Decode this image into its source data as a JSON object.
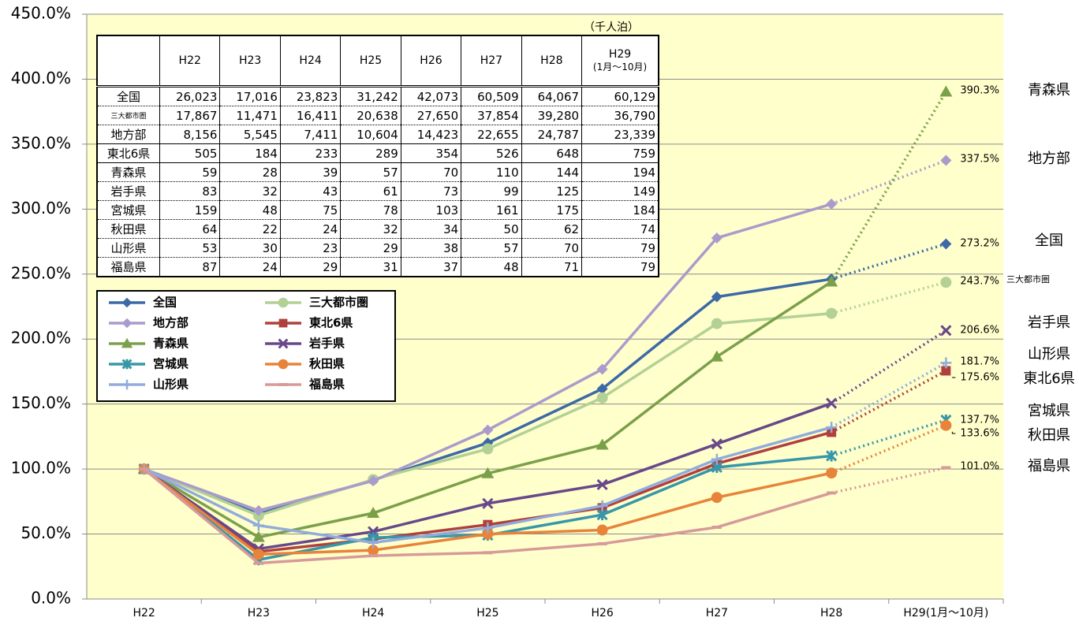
{
  "chart_data": {
    "type": "line",
    "categories": [
      "H22",
      "H23",
      "H24",
      "H25",
      "H26",
      "H27",
      "H28",
      "H29(1月～10月)"
    ],
    "ylim": [
      0,
      450
    ],
    "yticks": [
      {
        "value": 0,
        "label": "0.0%"
      },
      {
        "value": 50,
        "label": "50.0%"
      },
      {
        "value": 100,
        "label": "100.0%"
      },
      {
        "value": 150,
        "label": "150.0%"
      },
      {
        "value": 200,
        "label": "200.0%"
      },
      {
        "value": 250,
        "label": "250.0%"
      },
      {
        "value": 300,
        "label": "300.0%"
      },
      {
        "value": 350,
        "label": "350.0%"
      },
      {
        "value": 400,
        "label": "400.0%"
      },
      {
        "value": 450,
        "label": "450.0%"
      }
    ],
    "grid": true,
    "series": [
      {
        "name": "全国",
        "color": "#3d69a6",
        "marker": "diamond",
        "values": [
          100,
          65.4,
          91.5,
          120.1,
          161.7,
          232.5,
          246.2,
          273.2
        ],
        "value_labels": [
          null,
          null,
          null,
          null,
          null,
          null,
          null,
          "273.2%"
        ]
      },
      {
        "name": "三大都市圏",
        "color": "#b3d095",
        "marker": "circle",
        "values": [
          100,
          64.2,
          91.9,
          115.5,
          154.8,
          211.9,
          219.8,
          243.7
        ],
        "value_labels": [
          null,
          null,
          null,
          null,
          null,
          null,
          null,
          "243.7%"
        ]
      },
      {
        "name": "地方部",
        "color": "#a99ccb",
        "marker": "diamond",
        "values": [
          100,
          68.0,
          90.9,
          130.0,
          176.8,
          277.8,
          303.9,
          337.5
        ],
        "value_labels": [
          null,
          null,
          null,
          null,
          null,
          null,
          null,
          "337.5%"
        ]
      },
      {
        "name": "東北6県",
        "color": "#b0403d",
        "marker": "square",
        "values": [
          100,
          36.4,
          46.1,
          57.2,
          70.1,
          104.2,
          128.3,
          175.6
        ],
        "value_labels": [
          null,
          null,
          null,
          null,
          null,
          null,
          null,
          "175.6%"
        ]
      },
      {
        "name": "青森県",
        "color": "#7ba04a",
        "marker": "triangle",
        "values": [
          100,
          47.5,
          66.1,
          96.6,
          118.6,
          186.4,
          244.1,
          390.3
        ],
        "value_labels": [
          null,
          null,
          null,
          null,
          null,
          null,
          null,
          "390.3%"
        ]
      },
      {
        "name": "岩手県",
        "color": "#68488b",
        "marker": "x",
        "values": [
          100,
          38.6,
          51.8,
          73.5,
          88.0,
          119.3,
          150.6,
          206.6
        ],
        "value_labels": [
          null,
          null,
          null,
          null,
          null,
          null,
          null,
          "206.6%"
        ]
      },
      {
        "name": "宮城県",
        "color": "#3797a9",
        "marker": "star",
        "values": [
          100,
          30.2,
          47.2,
          49.1,
          64.8,
          101.3,
          110.1,
          137.7
        ],
        "value_labels": [
          null,
          null,
          null,
          null,
          null,
          null,
          null,
          "137.7%"
        ]
      },
      {
        "name": "秋田県",
        "color": "#e8833a",
        "marker": "circle",
        "values": [
          100,
          34.4,
          37.5,
          50.0,
          53.1,
          78.1,
          96.9,
          133.6
        ],
        "value_labels": [
          null,
          null,
          null,
          null,
          null,
          null,
          null,
          "133.6%"
        ]
      },
      {
        "name": "山形県",
        "color": "#91acdc",
        "marker": "plus",
        "values": [
          100,
          56.6,
          43.4,
          54.7,
          71.7,
          107.5,
          132.1,
          181.7
        ],
        "value_labels": [
          null,
          null,
          null,
          null,
          null,
          null,
          null,
          "181.7%"
        ]
      },
      {
        "name": "福島県",
        "color": "#d79a99",
        "marker": "dash",
        "values": [
          100,
          27.6,
          33.3,
          35.6,
          42.5,
          55.2,
          81.6,
          101.0
        ],
        "value_labels": [
          null,
          null,
          null,
          null,
          null,
          null,
          null,
          "101.0%"
        ]
      }
    ]
  },
  "table": {
    "unit": "（千人泊）",
    "header": [
      "H22",
      "H23",
      "H24",
      "H25",
      "H26",
      "H27",
      "H28",
      "H29",
      "(1月～10月)"
    ],
    "rows": [
      [
        "全国",
        "26,023",
        "17,016",
        "23,823",
        "31,242",
        "42,073",
        "60,509",
        "64,067",
        "60,129"
      ],
      [
        "三大都市圏",
        "17,867",
        "11,471",
        "16,411",
        "20,638",
        "27,650",
        "37,854",
        "39,280",
        "36,790"
      ],
      [
        "地方部",
        "8,156",
        "5,545",
        "7,411",
        "10,604",
        "14,423",
        "22,655",
        "24,787",
        "23,339"
      ],
      [
        "東北6県",
        "505",
        "184",
        "233",
        "289",
        "354",
        "526",
        "648",
        "759"
      ],
      [
        "青森県",
        "59",
        "28",
        "39",
        "57",
        "70",
        "110",
        "144",
        "194"
      ],
      [
        "岩手県",
        "83",
        "32",
        "43",
        "61",
        "73",
        "99",
        "125",
        "149"
      ],
      [
        "宮城県",
        "159",
        "48",
        "75",
        "78",
        "103",
        "161",
        "175",
        "184"
      ],
      [
        "秋田県",
        "64",
        "22",
        "24",
        "32",
        "34",
        "50",
        "62",
        "74"
      ],
      [
        "山形県",
        "53",
        "30",
        "23",
        "29",
        "38",
        "57",
        "70",
        "79"
      ],
      [
        "福島県",
        "87",
        "24",
        "29",
        "31",
        "37",
        "48",
        "71",
        "79"
      ]
    ]
  }
}
